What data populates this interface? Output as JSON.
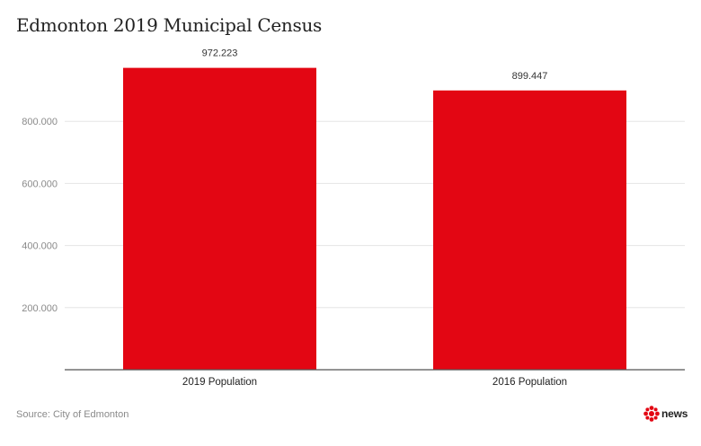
{
  "chart_data": {
    "type": "bar",
    "title": "Edmonton 2019 Municipal Census",
    "categories": [
      "2019 Population",
      "2016 Population"
    ],
    "values": [
      972223,
      899447
    ],
    "data_labels": [
      "972.223",
      "899.447"
    ],
    "ylim": [
      0,
      1000000
    ],
    "yticks": [
      200000,
      400000,
      600000,
      800000
    ],
    "ytick_labels": [
      "200.000",
      "400.000",
      "600.000",
      "800.000"
    ],
    "xlabel": "",
    "ylabel": "",
    "grid": true,
    "bar_color": "#e30613"
  },
  "footer": {
    "source": "Source: City of Edmonton",
    "logo_text": "news"
  },
  "colors": {
    "bar": "#e30613",
    "grid": "#e5e5e5",
    "axis": "#555555",
    "tick_text": "#8a8a8a",
    "label_text": "#333333"
  }
}
